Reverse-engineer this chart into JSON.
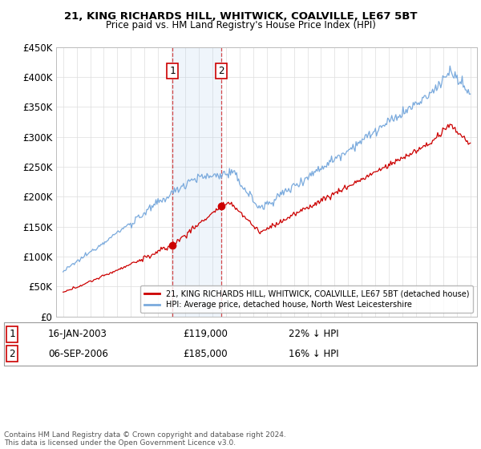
{
  "title1": "21, KING RICHARDS HILL, WHITWICK, COALVILLE, LE67 5BT",
  "title2": "Price paid vs. HM Land Registry's House Price Index (HPI)",
  "ylim": [
    0,
    450000
  ],
  "yticks": [
    0,
    50000,
    100000,
    150000,
    200000,
    250000,
    300000,
    350000,
    400000,
    450000
  ],
  "ytick_labels": [
    "£0",
    "£50K",
    "£100K",
    "£150K",
    "£200K",
    "£250K",
    "£300K",
    "£350K",
    "£400K",
    "£450K"
  ],
  "sale1_date": 2003.05,
  "sale1_price": 119000,
  "sale1_label": "1",
  "sale2_date": 2006.67,
  "sale2_price": 185000,
  "sale2_label": "2",
  "legend_red": "21, KING RICHARDS HILL, WHITWICK, COALVILLE, LE67 5BT (detached house)",
  "legend_blue": "HPI: Average price, detached house, North West Leicestershire",
  "row1_num": "1",
  "row1_date": "16-JAN-2003",
  "row1_price": "£119,000",
  "row1_hpi": "22% ↓ HPI",
  "row2_num": "2",
  "row2_date": "06-SEP-2006",
  "row2_price": "£185,000",
  "row2_hpi": "16% ↓ HPI",
  "footer": "Contains HM Land Registry data © Crown copyright and database right 2024.\nThis data is licensed under the Open Government Licence v3.0.",
  "sale_color": "#cc0000",
  "hpi_color": "#7aaadd",
  "background_color": "#ffffff",
  "grid_color": "#dddddd",
  "xlim_left": 1994.5,
  "xlim_right": 2025.5
}
